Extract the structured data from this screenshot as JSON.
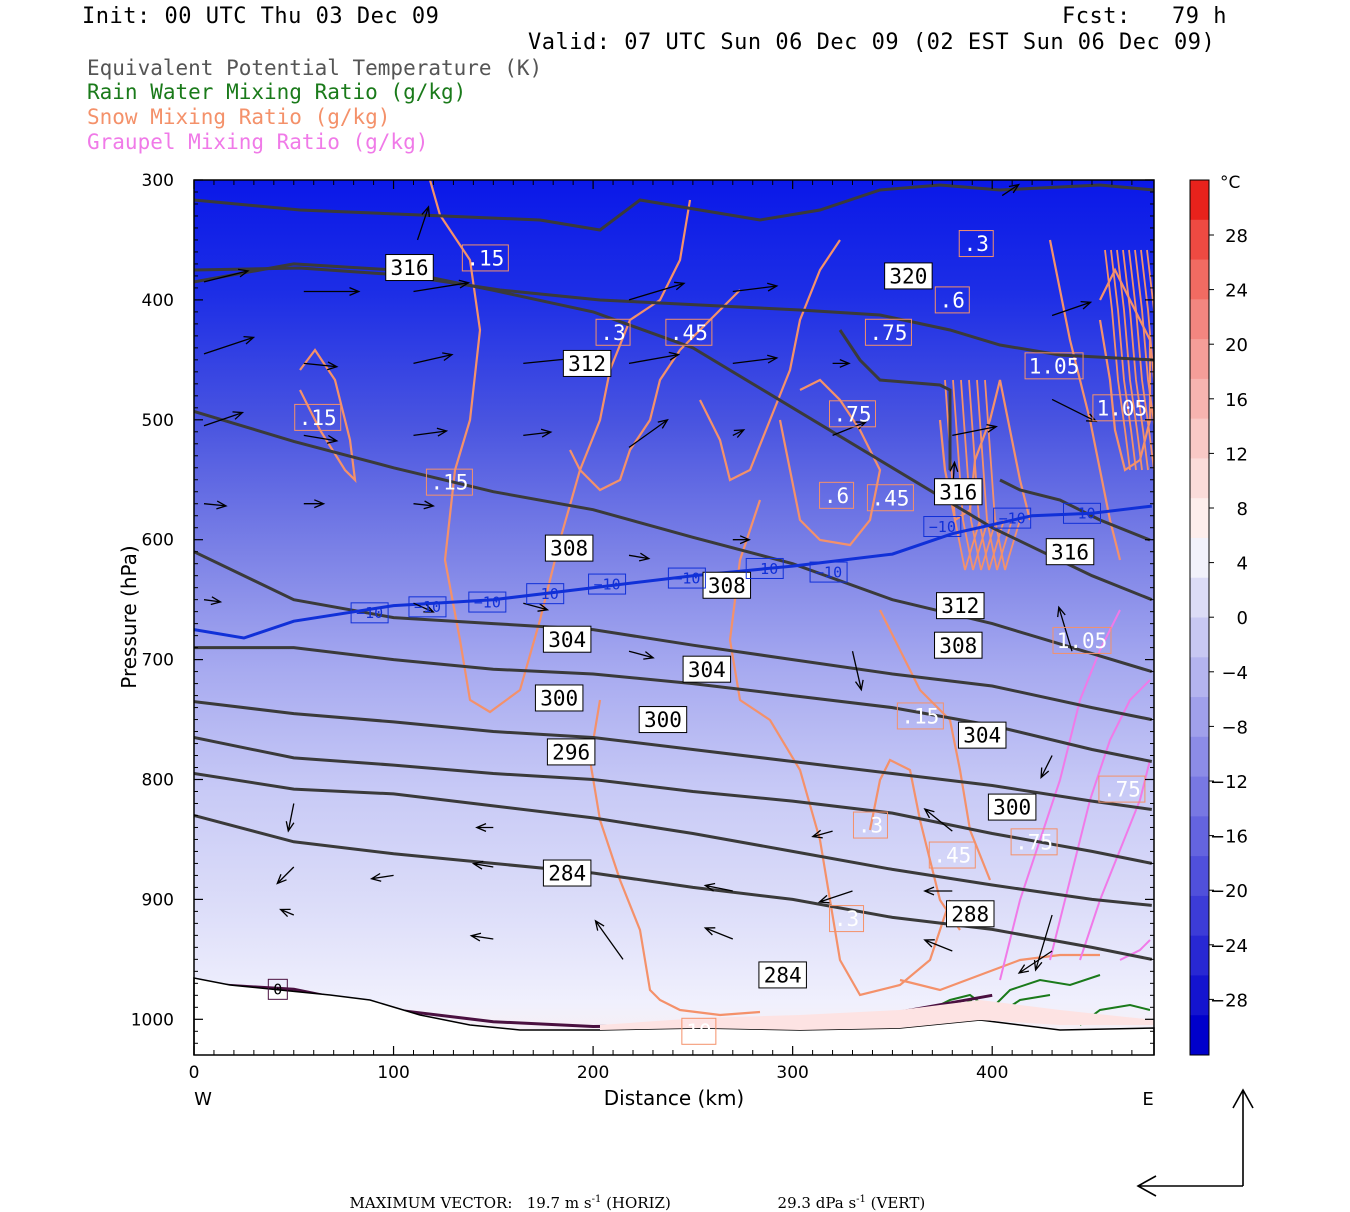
{
  "header": {
    "init": "Init: 00 UTC Thu 03 Dec 09",
    "fcst": "Fcst:   79 h",
    "valid": "Valid: 07 UTC Sun 06 Dec 09 (02 EST Sun 06 Dec 09)"
  },
  "legend": {
    "items": [
      {
        "label": "Equivalent Potential Temperature (K)",
        "color": "#555555"
      },
      {
        "label": "Rain Water Mixing Ratio (g/kg)",
        "color": "#1a7a1a"
      },
      {
        "label": "Snow Mixing Ratio (g/kg)",
        "color": "#f4916a"
      },
      {
        "label": "Graupel Mixing Ratio (g/kg)",
        "color": "#f07ae8"
      }
    ]
  },
  "colors": {
    "theta_e": "#3a3a3a",
    "snow": "#f4916a",
    "graupel": "#f07ae8",
    "rain": "#1a7a1a",
    "isotherm_m10": "#1030d8",
    "freezing": "#4a1040"
  },
  "chart_data": {
    "type": "cross-section",
    "x_axis": {
      "label": "Distance (km)",
      "range": [
        0,
        480
      ],
      "ticks": [
        "0",
        "100",
        "200",
        "300",
        "400"
      ],
      "tick_values": [
        0,
        100,
        200,
        300,
        400
      ],
      "left_end": "W",
      "right_end": "E"
    },
    "y_axis": {
      "label": "Pressure (hPa)",
      "range": [
        300,
        1030
      ],
      "scale": "linear, inverted",
      "ticks": [
        "300",
        "400",
        "500",
        "600",
        "700",
        "800",
        "900",
        "1000"
      ],
      "tick_values": [
        300,
        400,
        500,
        600,
        700,
        800,
        900,
        1000
      ]
    },
    "colorbar": {
      "unit": "°C",
      "labels": [
        "28",
        "24",
        "20",
        "16",
        "12",
        "8",
        "4",
        "0",
        "−4",
        "−8",
        "−12",
        "−16",
        "−20",
        "−24",
        "−28"
      ],
      "bands": [
        "#e8221c",
        "#ee4a42",
        "#f16b62",
        "#f38680",
        "#f59e99",
        "#f7b4b0",
        "#f9c9c6",
        "#fbdcda",
        "#fdeeec",
        "#f2f2fb",
        "#dcdcf7",
        "#c8c8f3",
        "#b4b4ef",
        "#a0a0eb",
        "#8c8ce7",
        "#7878e3",
        "#6464df",
        "#5050db",
        "#3c3cd7",
        "#2828d3",
        "#1414cf",
        "#0000cb"
      ]
    },
    "temperature_field": [
      {
        "p": 300,
        "t": -34
      },
      {
        "p": 400,
        "t": -28
      },
      {
        "p": 500,
        "t": -22
      },
      {
        "p": 600,
        "t": -14
      },
      {
        "p": 700,
        "t": -9
      },
      {
        "p": 800,
        "t": -5
      },
      {
        "p": 900,
        "t": -3
      },
      {
        "p": 1000,
        "t": 0
      }
    ],
    "theta_e_contours": [
      {
        "value": 284,
        "points": [
          [
            0,
            830
          ],
          [
            50,
            852
          ],
          [
            100,
            862
          ],
          [
            150,
            870
          ],
          [
            200,
            878
          ],
          [
            250,
            890
          ],
          [
            300,
            900
          ],
          [
            350,
            915
          ],
          [
            400,
            925
          ],
          [
            450,
            940
          ],
          [
            480,
            950
          ]
        ]
      },
      {
        "value": 288,
        "points": [
          [
            0,
            795
          ],
          [
            50,
            808
          ],
          [
            100,
            812
          ],
          [
            150,
            822
          ],
          [
            200,
            832
          ],
          [
            250,
            845
          ],
          [
            300,
            860
          ],
          [
            350,
            875
          ],
          [
            400,
            888
          ],
          [
            450,
            900
          ],
          [
            480,
            905
          ]
        ]
      },
      {
        "value": 296,
        "points": [
          [
            0,
            765
          ],
          [
            50,
            782
          ],
          [
            100,
            788
          ],
          [
            150,
            795
          ],
          [
            200,
            800
          ],
          [
            250,
            810
          ],
          [
            300,
            818
          ],
          [
            350,
            828
          ],
          [
            400,
            845
          ],
          [
            450,
            860
          ],
          [
            480,
            870
          ]
        ]
      },
      {
        "value": 300,
        "points": [
          [
            0,
            735
          ],
          [
            50,
            745
          ],
          [
            100,
            752
          ],
          [
            150,
            760
          ],
          [
            200,
            765
          ],
          [
            250,
            775
          ],
          [
            300,
            785
          ],
          [
            350,
            795
          ],
          [
            400,
            805
          ],
          [
            450,
            818
          ],
          [
            480,
            825
          ]
        ]
      },
      {
        "value": 304,
        "points": [
          [
            0,
            690
          ],
          [
            50,
            690
          ],
          [
            100,
            700
          ],
          [
            150,
            708
          ],
          [
            200,
            712
          ],
          [
            250,
            720
          ],
          [
            300,
            730
          ],
          [
            350,
            740
          ],
          [
            400,
            755
          ],
          [
            450,
            775
          ],
          [
            480,
            785
          ]
        ]
      },
      {
        "value": 308,
        "points": [
          [
            0,
            610
          ],
          [
            50,
            650
          ],
          [
            100,
            665
          ],
          [
            150,
            670
          ],
          [
            200,
            675
          ],
          [
            250,
            688
          ],
          [
            300,
            700
          ],
          [
            350,
            712
          ],
          [
            400,
            722
          ],
          [
            450,
            740
          ],
          [
            480,
            750
          ]
        ]
      },
      {
        "value": 312,
        "points": [
          [
            0,
            493
          ],
          [
            50,
            518
          ],
          [
            100,
            540
          ],
          [
            150,
            560
          ],
          [
            200,
            575
          ],
          [
            250,
            598
          ],
          [
            300,
            620
          ],
          [
            350,
            650
          ],
          [
            400,
            670
          ],
          [
            450,
            695
          ],
          [
            480,
            710
          ]
        ]
      },
      {
        "value": 316,
        "points": [
          [
            0,
            385
          ],
          [
            50,
            370
          ],
          [
            100,
            375
          ],
          [
            150,
            392
          ],
          [
            200,
            410
          ],
          [
            250,
            440
          ],
          [
            300,
            490
          ],
          [
            350,
            540
          ],
          [
            400,
            590
          ],
          [
            450,
            630
          ],
          [
            480,
            650
          ]
        ]
      }
    ],
    "isotherm_minus10": {
      "value": -10,
      "points": [
        [
          0,
          675
        ],
        [
          25,
          682
        ],
        [
          50,
          668
        ],
        [
          100,
          655
        ],
        [
          150,
          650
        ],
        [
          200,
          640
        ],
        [
          250,
          630
        ],
        [
          300,
          622
        ],
        [
          350,
          612
        ],
        [
          380,
          595
        ],
        [
          420,
          580
        ],
        [
          450,
          578
        ],
        [
          480,
          572
        ]
      ]
    },
    "isotherm_0": {
      "value": 0,
      "points": [
        [
          0,
          970
        ],
        [
          50,
          975
        ],
        [
          100,
          992
        ],
        [
          150,
          1002
        ],
        [
          200,
          1006
        ],
        [
          250,
          1005
        ],
        [
          300,
          1000
        ],
        [
          350,
          995
        ],
        [
          400,
          980
        ]
      ]
    },
    "theta_e_labels": [
      {
        "text": "316",
        "x": 108,
        "p": 373
      },
      {
        "text": "312",
        "x": 197,
        "p": 453
      },
      {
        "text": "308",
        "x": 188,
        "p": 607
      },
      {
        "text": "308",
        "x": 267,
        "p": 638
      },
      {
        "text": "304",
        "x": 187,
        "p": 683
      },
      {
        "text": "304",
        "x": 257,
        "p": 708
      },
      {
        "text": "300",
        "x": 183,
        "p": 732
      },
      {
        "text": "300",
        "x": 235,
        "p": 750
      },
      {
        "text": "296",
        "x": 189,
        "p": 777
      },
      {
        "text": "284",
        "x": 187,
        "p": 878
      },
      {
        "text": "284",
        "x": 295,
        "p": 963
      },
      {
        "text": "320",
        "x": 358,
        "p": 380
      },
      {
        "text": "316",
        "x": 383,
        "p": 560
      },
      {
        "text": "312",
        "x": 384,
        "p": 655
      },
      {
        "text": "308",
        "x": 383,
        "p": 688
      },
      {
        "text": "304",
        "x": 395,
        "p": 763
      },
      {
        "text": "300",
        "x": 410,
        "p": 823
      },
      {
        "text": "288",
        "x": 389,
        "p": 912
      },
      {
        "text": "316",
        "x": 439,
        "p": 610
      }
    ],
    "isotherm_labels": [
      {
        "text": "−10",
        "x": 88,
        "p": 661
      },
      {
        "text": "−10",
        "x": 117,
        "p": 656
      },
      {
        "text": "−10",
        "x": 147,
        "p": 652
      },
      {
        "text": "−10",
        "x": 176,
        "p": 645
      },
      {
        "text": "−10",
        "x": 207,
        "p": 637
      },
      {
        "text": "−10",
        "x": 247,
        "p": 632
      },
      {
        "text": "−10",
        "x": 286,
        "p": 624
      },
      {
        "text": "−10",
        "x": 318,
        "p": 627
      },
      {
        "text": "−10",
        "x": 375,
        "p": 589
      },
      {
        "text": "−10",
        "x": 410,
        "p": 582
      },
      {
        "text": "−10",
        "x": 445,
        "p": 578
      },
      {
        "text": "0",
        "x": 42,
        "p": 975
      }
    ],
    "snow_labels": [
      {
        "text": ".15",
        "x": 146,
        "p": 365
      },
      {
        "text": ".3",
        "x": 210,
        "p": 427
      },
      {
        "text": ".45",
        "x": 248,
        "p": 427
      },
      {
        "text": ".15",
        "x": 62,
        "p": 498
      },
      {
        "text": ".15",
        "x": 128,
        "p": 552
      },
      {
        "text": ".75",
        "x": 348,
        "p": 427
      },
      {
        "text": ".75",
        "x": 330,
        "p": 495
      },
      {
        "text": ".6",
        "x": 322,
        "p": 563
      },
      {
        "text": ".45",
        "x": 349,
        "p": 565
      },
      {
        "text": ".6",
        "x": 380,
        "p": 400
      },
      {
        "text": ".3",
        "x": 392,
        "p": 353
      },
      {
        "text": "1.05",
        "x": 431,
        "p": 455
      },
      {
        "text": "1.05",
        "x": 465,
        "p": 490
      },
      {
        "text": ".15",
        "x": 364,
        "p": 747
      },
      {
        "text": ".3",
        "x": 339,
        "p": 838
      },
      {
        "text": ".45",
        "x": 380,
        "p": 863
      },
      {
        "text": ".3",
        "x": 327,
        "p": 916
      },
      {
        "text": "10",
        "x": 253,
        "p": 1010
      },
      {
        "text": ".75",
        "x": 421,
        "p": 852
      },
      {
        "text": ".75",
        "x": 465,
        "p": 808
      },
      {
        "text": "1.05",
        "x": 445,
        "p": 684
      }
    ],
    "wind_vectors": [
      {
        "x": 112,
        "p": 350,
        "u": 10,
        "v": 30
      },
      {
        "x": 5,
        "p": 385,
        "u": 40,
        "v": 10
      },
      {
        "x": 5,
        "p": 445,
        "u": 45,
        "v": 15
      },
      {
        "x": 5,
        "p": 505,
        "u": 35,
        "v": 12
      },
      {
        "x": 5,
        "p": 570,
        "u": 20,
        "v": -2
      },
      {
        "x": 5,
        "p": 650,
        "u": 15,
        "v": -2
      },
      {
        "x": 55,
        "p": 393,
        "u": 50,
        "v": 0
      },
      {
        "x": 55,
        "p": 453,
        "u": 30,
        "v": -3
      },
      {
        "x": 55,
        "p": 513,
        "u": 30,
        "v": -5
      },
      {
        "x": 55,
        "p": 570,
        "u": 18,
        "v": 0
      },
      {
        "x": 110,
        "p": 393,
        "u": 50,
        "v": 8
      },
      {
        "x": 110,
        "p": 453,
        "u": 35,
        "v": 8
      },
      {
        "x": 110,
        "p": 513,
        "u": 30,
        "v": 4
      },
      {
        "x": 110,
        "p": 570,
        "u": 18,
        "v": -2
      },
      {
        "x": 110,
        "p": 653,
        "u": 18,
        "v": -8
      },
      {
        "x": 165,
        "p": 453,
        "u": 50,
        "v": 5
      },
      {
        "x": 165,
        "p": 513,
        "u": 25,
        "v": 3
      },
      {
        "x": 165,
        "p": 653,
        "u": 22,
        "v": -6
      },
      {
        "x": 218,
        "p": 400,
        "u": 50,
        "v": 15
      },
      {
        "x": 218,
        "p": 453,
        "u": 45,
        "v": 8
      },
      {
        "x": 218,
        "p": 523,
        "u": 35,
        "v": 25
      },
      {
        "x": 218,
        "p": 613,
        "u": 18,
        "v": -3
      },
      {
        "x": 218,
        "p": 693,
        "u": 22,
        "v": -6
      },
      {
        "x": 270,
        "p": 393,
        "u": 40,
        "v": 5
      },
      {
        "x": 270,
        "p": 453,
        "u": 40,
        "v": 5
      },
      {
        "x": 270,
        "p": 513,
        "u": 10,
        "v": 5
      },
      {
        "x": 270,
        "p": 600,
        "u": 15,
        "v": 0
      },
      {
        "x": 320,
        "p": 453,
        "u": 15,
        "v": 0
      },
      {
        "x": 320,
        "p": 513,
        "u": 30,
        "v": 12
      },
      {
        "x": 330,
        "p": 693,
        "u": 8,
        "v": -35
      },
      {
        "x": 380,
        "p": 513,
        "u": 40,
        "v": 8
      },
      {
        "x": 380,
        "p": 563,
        "u": 2,
        "v": 30
      },
      {
        "x": 405,
        "p": 313,
        "u": 15,
        "v": 10
      },
      {
        "x": 430,
        "p": 413,
        "u": 35,
        "v": 12
      },
      {
        "x": 430,
        "p": 483,
        "u": 40,
        "v": -20
      },
      {
        "x": 440,
        "p": 693,
        "u": -12,
        "v": 40
      },
      {
        "x": 150,
        "p": 840,
        "u": -15,
        "v": 0
      },
      {
        "x": 150,
        "p": 873,
        "u": -18,
        "v": 3
      },
      {
        "x": 150,
        "p": 933,
        "u": -20,
        "v": 3
      },
      {
        "x": 100,
        "p": 880,
        "u": -20,
        "v": -3
      },
      {
        "x": 50,
        "p": 820,
        "u": -5,
        "v": -25
      },
      {
        "x": 50,
        "p": 873,
        "u": -15,
        "v": -15
      },
      {
        "x": 50,
        "p": 913,
        "u": -12,
        "v": 5
      },
      {
        "x": 215,
        "p": 950,
        "u": -25,
        "v": 35
      },
      {
        "x": 270,
        "p": 893,
        "u": -25,
        "v": 5
      },
      {
        "x": 270,
        "p": 933,
        "u": -25,
        "v": 10
      },
      {
        "x": 330,
        "p": 893,
        "u": -30,
        "v": -10
      },
      {
        "x": 320,
        "p": 843,
        "u": -18,
        "v": -5
      },
      {
        "x": 380,
        "p": 843,
        "u": -25,
        "v": 20
      },
      {
        "x": 380,
        "p": 893,
        "u": -25,
        "v": 0
      },
      {
        "x": 380,
        "p": 943,
        "u": -25,
        "v": 10
      },
      {
        "x": 430,
        "p": 943,
        "u": -30,
        "v": -20
      },
      {
        "x": 430,
        "p": 913,
        "u": -15,
        "v": -50
      },
      {
        "x": 430,
        "p": 780,
        "u": -10,
        "v": -20
      }
    ]
  },
  "footer": {
    "max_vector_label": "MAXIMUM VECTOR:",
    "horiz_value": "19.7 m s",
    "horiz_sup": "-1",
    "horiz_unit": " (HORIZ)",
    "vert_value": "29.3 dPa s",
    "vert_sup": "-1",
    "vert_unit": " (VERT)"
  }
}
